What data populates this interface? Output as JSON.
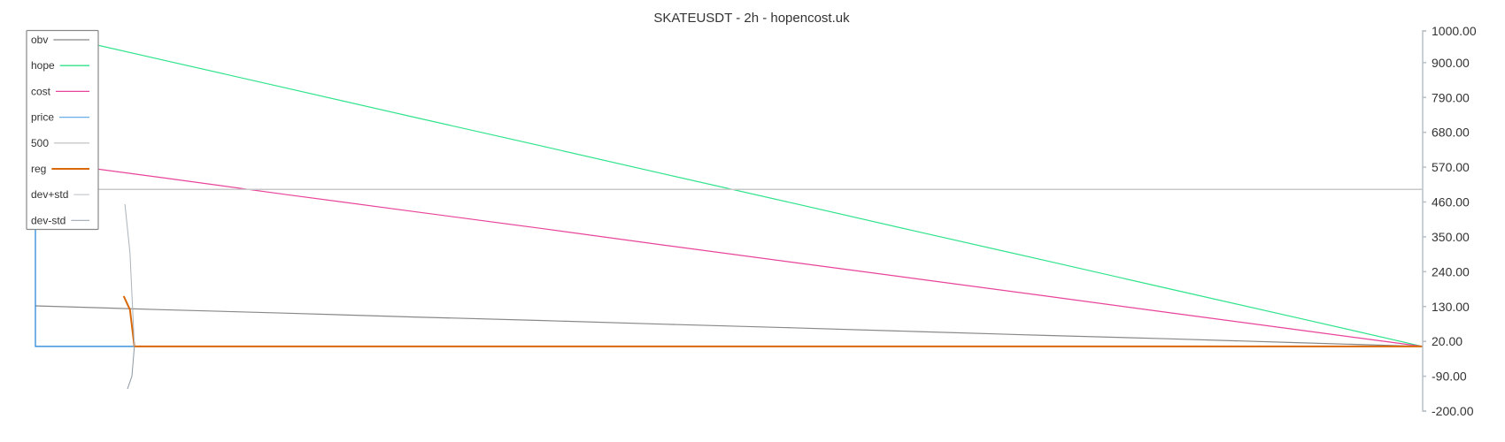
{
  "chart_data": {
    "type": "line",
    "title": "SKATEUSDT - 2h - hopencost.uk",
    "xlabel": "",
    "ylabel": "",
    "xlim": [
      0,
      220
    ],
    "ylim": [
      -200,
      1000
    ],
    "yticks": [
      "1000.00",
      "900.00",
      "790.00",
      "680.00",
      "570.00",
      "460.00",
      "350.00",
      "240.00",
      "130.00",
      "20.00",
      "-90.00",
      "-200.00"
    ],
    "ytick_values": [
      1000,
      900,
      790,
      680,
      570,
      460,
      350,
      240,
      130,
      20,
      -90,
      -200
    ],
    "y_axis_position": "right",
    "grid": false,
    "legend_placement": "top-left",
    "series": [
      {
        "name": "obv",
        "color": "#888888",
        "width": 1.2,
        "points": [
          [
            0,
            132
          ],
          [
            20,
            120
          ],
          [
            40,
            109
          ],
          [
            60,
            97
          ],
          [
            80,
            86
          ],
          [
            100,
            74
          ],
          [
            120,
            63
          ],
          [
            140,
            51
          ],
          [
            160,
            39
          ],
          [
            180,
            28
          ],
          [
            200,
            16
          ],
          [
            220,
            4
          ]
        ]
      },
      {
        "name": "hope",
        "color": "#2ee38a",
        "width": 1.2,
        "points": [
          [
            0,
            1000
          ],
          [
            20,
            909
          ],
          [
            40,
            819
          ],
          [
            60,
            728
          ],
          [
            80,
            638
          ],
          [
            100,
            547
          ],
          [
            120,
            457
          ],
          [
            140,
            366
          ],
          [
            160,
            276
          ],
          [
            180,
            185
          ],
          [
            200,
            95
          ],
          [
            220,
            4
          ]
        ]
      },
      {
        "name": "cost",
        "color": "#e8449a",
        "width": 1.2,
        "points": [
          [
            0,
            590
          ],
          [
            20,
            537
          ],
          [
            40,
            483
          ],
          [
            60,
            430
          ],
          [
            80,
            377
          ],
          [
            100,
            323
          ],
          [
            120,
            270
          ],
          [
            140,
            217
          ],
          [
            160,
            164
          ],
          [
            180,
            110
          ],
          [
            200,
            57
          ],
          [
            220,
            4
          ]
        ]
      },
      {
        "name": "price",
        "color": "#1a7fd6",
        "legend_color": "#6aaee8",
        "width": 1.2,
        "points": [
          [
            0,
            1000
          ],
          [
            0,
            4
          ],
          [
            220,
            4
          ]
        ]
      },
      {
        "name": "500",
        "color": "#c8c8c8",
        "width": 1.5,
        "points": [
          [
            0,
            500
          ],
          [
            220,
            500
          ]
        ]
      },
      {
        "name": "reg",
        "color": "#d9680a",
        "line_color_after_join": "#8b6a4a",
        "width": 2,
        "points": [
          [
            14,
            163
          ],
          [
            15,
            120
          ],
          [
            15.7,
            4
          ],
          [
            220,
            4
          ]
        ]
      },
      {
        "name": "dev+std",
        "color": "#aab3bb",
        "legend_color": "#ccd1d6",
        "width": 1,
        "points": [
          [
            14.2,
            453
          ],
          [
            15,
            300
          ],
          [
            15.7,
            4
          ]
        ]
      },
      {
        "name": "dev-std",
        "color": "#8f9aa4",
        "legend_color": "#a9b2ba",
        "width": 1,
        "points": [
          [
            14.6,
            -130
          ],
          [
            15.3,
            -90
          ],
          [
            15.7,
            4
          ]
        ]
      }
    ]
  }
}
